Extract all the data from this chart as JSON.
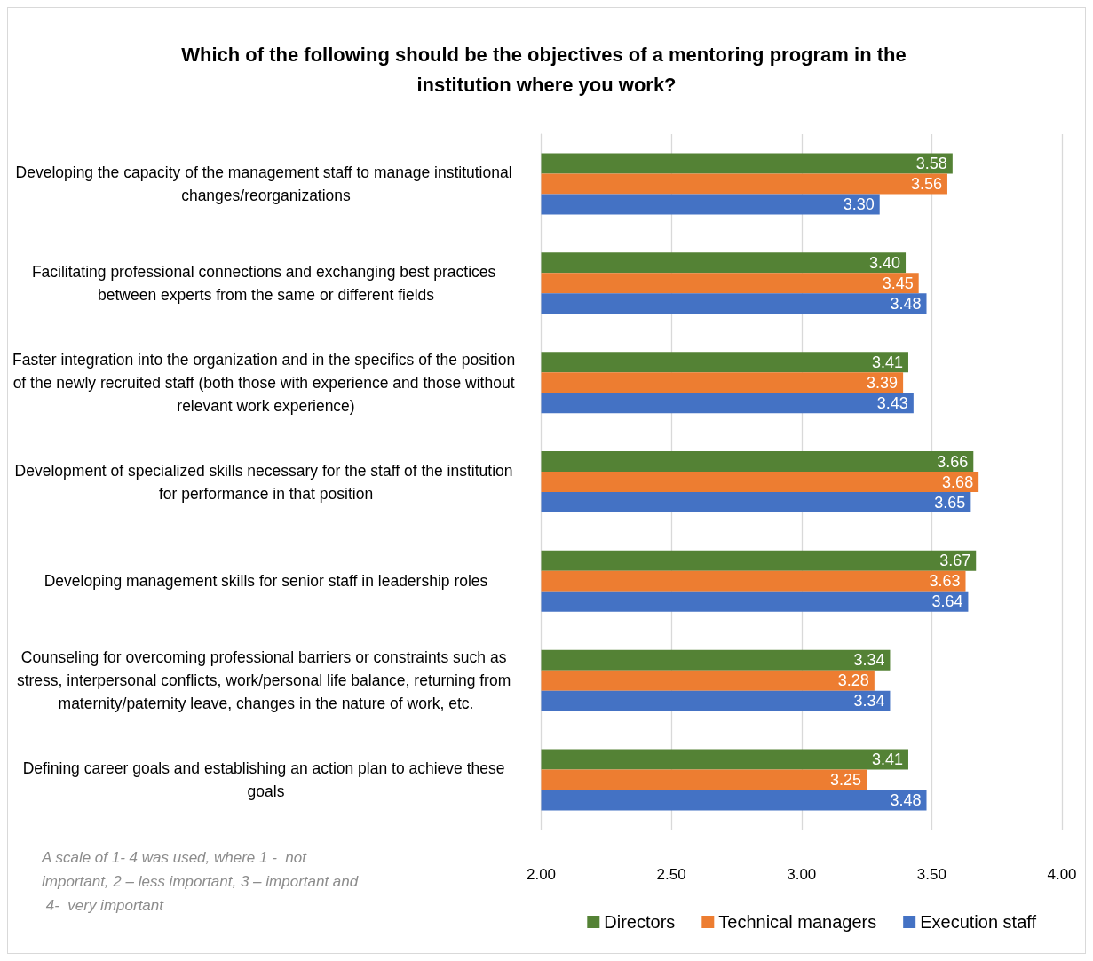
{
  "chart_data": {
    "type": "bar",
    "orientation": "horizontal",
    "title": "Which of the following should be the objectives of a mentoring program in the institution where you work?",
    "categories": [
      "Developing the capacity of the management staff to manage institutional changes/reorganizations",
      "Facilitating professional connections and exchanging best practices between experts from the same or different fields",
      "Faster integration into the organization and in the specifics of the position of the newly recruited staff (both those with experience and those without relevant work experience)",
      "Development of specialized skills necessary for the staff of the institution for performance in that position",
      "Developing management skills for senior staff in leadership roles",
      "Counseling for overcoming professional barriers or constraints such as stress, interpersonal conflicts, work/personal life balance, returning from maternity/paternity leave, changes in the nature of work, etc.",
      "Defining career goals and establishing an action plan to achieve these goals"
    ],
    "series": [
      {
        "name": "Directors",
        "color": "#548235",
        "values": [
          3.58,
          3.4,
          3.41,
          3.66,
          3.67,
          3.34,
          3.41
        ],
        "value_labels": [
          "3.58",
          "3.40",
          "3.41",
          "3.66",
          "3.67",
          "3.34",
          "3.41"
        ]
      },
      {
        "name": "Technical managers",
        "color": "#ed7d31",
        "values": [
          3.56,
          3.45,
          3.39,
          3.68,
          3.63,
          3.28,
          3.25
        ],
        "value_labels": [
          "3.56",
          "3.45",
          "3.39",
          "3.68",
          "3.63",
          "3.28",
          "3.25"
        ]
      },
      {
        "name": "Execution staff",
        "color": "#4472c4",
        "values": [
          3.3,
          3.48,
          3.43,
          3.65,
          3.64,
          3.34,
          3.48
        ],
        "value_labels": [
          "3.30",
          "3.48",
          "3.43",
          "3.65",
          "3.64",
          "3.34",
          "3.48"
        ]
      }
    ],
    "xlim": [
      2,
      4
    ],
    "xticks": [
      {
        "value": 2,
        "label": "2.00"
      },
      {
        "value": 2.5,
        "label": "2.50"
      },
      {
        "value": 3,
        "label": "3.00"
      },
      {
        "value": 3.5,
        "label": "3.50"
      },
      {
        "value": 4,
        "label": "4.00"
      }
    ],
    "grid": "x",
    "legend": "bottom right",
    "annotations": [
      "A scale of 1- 4 was used, where 1 -  not important, 2 – less important, 3 – important and 4-  very important"
    ]
  }
}
